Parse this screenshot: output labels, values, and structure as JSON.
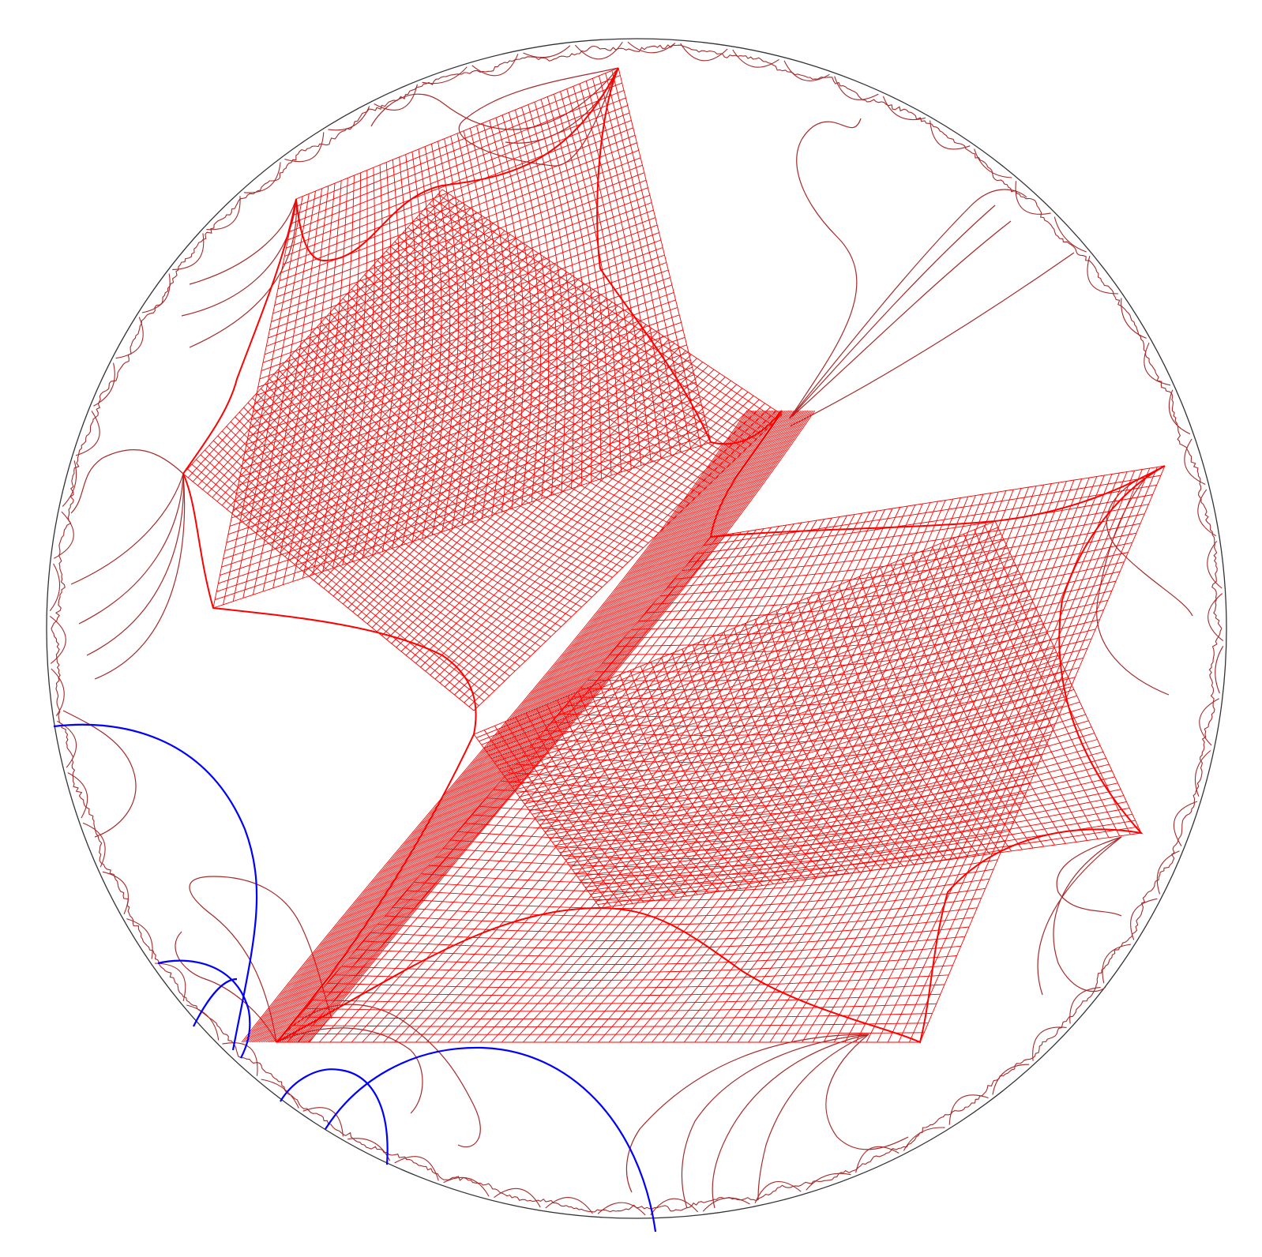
{
  "figure": {
    "kind": "hyperbolic disk conformal map",
    "colors": {
      "background": "#ffffff",
      "disk_boundary": "#333333",
      "mesh": "#ff0000",
      "branch_curves": "#a52a2a",
      "geodesic_arcs": "#0000ff"
    },
    "layers": [
      "disk-boundary",
      "fractal-fringe",
      "branch-curves",
      "red-mesh",
      "blue-geodesic-arcs"
    ]
  }
}
